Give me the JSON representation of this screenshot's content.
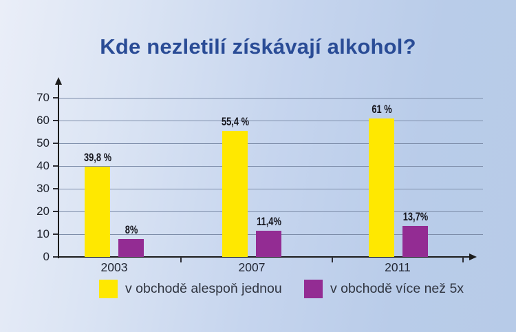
{
  "title": "Kde nezletilí získávají alkohol?",
  "colors": {
    "background_left": "#eaeef8",
    "background_right": "#b7cbe8",
    "title": "#2a4c96",
    "axis": "#1c1c1c",
    "gridline": "#7d8da9",
    "series1": "#ffe800",
    "series2": "#932c93"
  },
  "chart_data": {
    "type": "bar",
    "title": "Kde nezletilí získávají alkohol?",
    "categories": [
      "2003",
      "2007",
      "2011"
    ],
    "series": [
      {
        "name": "v obchodě alespoň jednou",
        "color": "#ffe800",
        "values": [
          39.8,
          55.4,
          61
        ],
        "value_labels": [
          "39,8 %",
          "55,4 %",
          "61 %"
        ]
      },
      {
        "name": "v obchodě více než 5x",
        "color": "#932c93",
        "values": [
          8,
          11.4,
          13.7
        ],
        "value_labels": [
          "8%",
          "11,4%",
          "13,7%"
        ]
      }
    ],
    "xlabel": "",
    "ylabel": "",
    "ylim": [
      0,
      70
    ],
    "yticks": [
      0,
      10,
      20,
      30,
      40,
      50,
      60,
      70
    ],
    "grid": true,
    "legend_position": "bottom"
  }
}
